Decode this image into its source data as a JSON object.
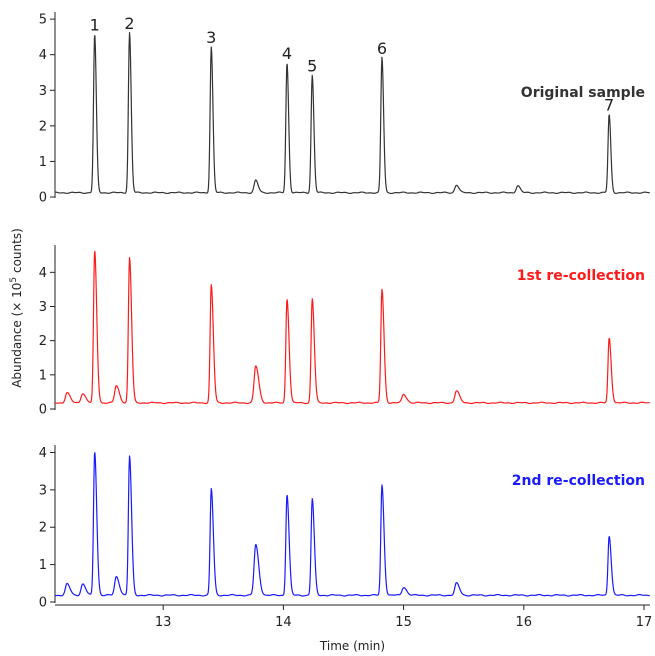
{
  "chart_data": {
    "type": "line",
    "xlabel": "Time (min)",
    "ylabel": {
      "prefix": "Abundance (× 10",
      "sup": "5",
      "suffix": " counts)"
    },
    "xlim": [
      12.1,
      17.05
    ],
    "xticks": [
      "13",
      "14",
      "15",
      "16",
      "17"
    ],
    "xtick_values": [
      13,
      14,
      15,
      16,
      17
    ],
    "peak_labels": [
      {
        "label": "1",
        "x": 12.43,
        "y": 4.45
      },
      {
        "label": "2",
        "x": 12.72,
        "y": 4.5
      },
      {
        "label": "3",
        "x": 13.4,
        "y": 4.1
      },
      {
        "label": "4",
        "x": 14.03,
        "y": 3.65
      },
      {
        "label": "5",
        "x": 14.24,
        "y": 3.3
      },
      {
        "label": "6",
        "x": 14.82,
        "y": 3.8
      },
      {
        "label": "7",
        "x": 16.71,
        "y": 2.2
      }
    ],
    "panels": [
      {
        "title": "Original sample",
        "color": "#333333",
        "ylim": [
          0,
          5.2
        ],
        "yticks": [
          "0",
          "1",
          "2",
          "3",
          "4",
          "5"
        ],
        "ytick_values": [
          0,
          1,
          2,
          3,
          4,
          5
        ],
        "baseline": 0.12,
        "peaks": [
          {
            "x": 12.43,
            "y": 4.45
          },
          {
            "x": 12.72,
            "y": 4.5
          },
          {
            "x": 13.4,
            "y": 4.1
          },
          {
            "x": 13.77,
            "y": 0.35
          },
          {
            "x": 14.03,
            "y": 3.65
          },
          {
            "x": 14.24,
            "y": 3.3
          },
          {
            "x": 14.82,
            "y": 3.8
          },
          {
            "x": 15.44,
            "y": 0.22
          },
          {
            "x": 15.95,
            "y": 0.2
          },
          {
            "x": 16.71,
            "y": 2.2
          }
        ]
      },
      {
        "title": "1st re-collection",
        "color": "#ff1a1a",
        "ylim": [
          0,
          4.8
        ],
        "yticks": [
          "0",
          "1",
          "2",
          "3",
          "4"
        ],
        "ytick_values": [
          0,
          1,
          2,
          3,
          4
        ],
        "baseline": 0.18,
        "peaks": [
          {
            "x": 12.2,
            "y": 0.3
          },
          {
            "x": 12.33,
            "y": 0.28
          },
          {
            "x": 12.43,
            "y": 4.45
          },
          {
            "x": 12.61,
            "y": 0.5
          },
          {
            "x": 12.72,
            "y": 4.25
          },
          {
            "x": 13.4,
            "y": 3.45
          },
          {
            "x": 13.77,
            "y": 1.08
          },
          {
            "x": 14.03,
            "y": 3.05
          },
          {
            "x": 14.24,
            "y": 3.05
          },
          {
            "x": 14.82,
            "y": 3.32
          },
          {
            "x": 15.0,
            "y": 0.25
          },
          {
            "x": 15.44,
            "y": 0.35
          },
          {
            "x": 16.71,
            "y": 1.9
          }
        ]
      },
      {
        "title": "2nd re-collection",
        "color": "#1a1aff",
        "ylim": [
          0,
          4.2
        ],
        "yticks": [
          "0",
          "1",
          "2",
          "3",
          "4"
        ],
        "ytick_values": [
          0,
          1,
          2,
          3,
          4
        ],
        "baseline": 0.18,
        "peaks": [
          {
            "x": 12.2,
            "y": 0.3
          },
          {
            "x": 12.33,
            "y": 0.3
          },
          {
            "x": 12.43,
            "y": 3.85
          },
          {
            "x": 12.61,
            "y": 0.5
          },
          {
            "x": 12.72,
            "y": 3.72
          },
          {
            "x": 13.4,
            "y": 2.85
          },
          {
            "x": 13.77,
            "y": 1.35
          },
          {
            "x": 14.03,
            "y": 2.7
          },
          {
            "x": 14.24,
            "y": 2.58
          },
          {
            "x": 14.82,
            "y": 2.95
          },
          {
            "x": 15.0,
            "y": 0.22
          },
          {
            "x": 15.44,
            "y": 0.32
          },
          {
            "x": 16.71,
            "y": 1.6
          }
        ]
      }
    ]
  }
}
